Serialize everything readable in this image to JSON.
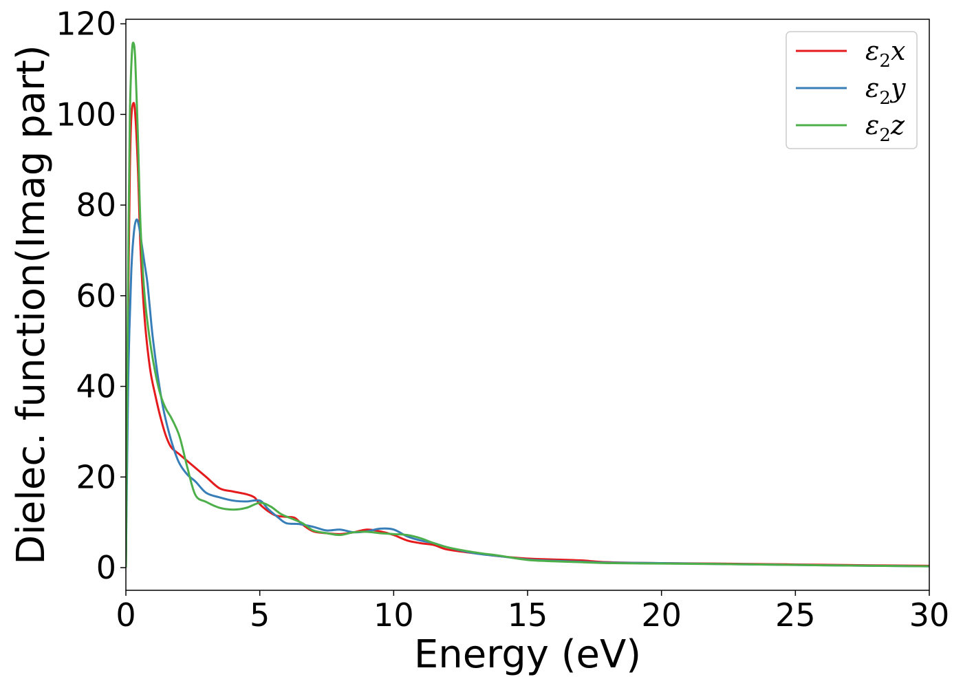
{
  "chart_data": {
    "type": "line",
    "title": "",
    "xlabel": "Energy (eV)",
    "ylabel": "Dielec. function(Imag part)",
    "xlim": [
      0,
      30
    ],
    "ylim": [
      -5,
      121
    ],
    "xticks": [
      0,
      5,
      10,
      15,
      20,
      25,
      30
    ],
    "yticks": [
      0,
      20,
      40,
      60,
      80,
      100,
      120
    ],
    "grid": false,
    "legend_position": "top-right",
    "series": [
      {
        "name": "ε2x",
        "legend": {
          "sym": "ε",
          "sub": "2",
          "var": "x"
        },
        "color": "#e41a1c",
        "points": [
          [
            0,
            0
          ],
          [
            0.05,
            35
          ],
          [
            0.1,
            65
          ],
          [
            0.15,
            88
          ],
          [
            0.2,
            99
          ],
          [
            0.28,
            102.5
          ],
          [
            0.35,
            100
          ],
          [
            0.45,
            88
          ],
          [
            0.55,
            70
          ],
          [
            0.7,
            55
          ],
          [
            0.9,
            44
          ],
          [
            1.1,
            38
          ],
          [
            1.3,
            33
          ],
          [
            1.5,
            29
          ],
          [
            1.7,
            26.5
          ],
          [
            2.0,
            25
          ],
          [
            2.5,
            22.5
          ],
          [
            3.0,
            20
          ],
          [
            3.5,
            17.5
          ],
          [
            4.0,
            16.8
          ],
          [
            4.5,
            16.2
          ],
          [
            4.8,
            15.5
          ],
          [
            5.0,
            14
          ],
          [
            5.3,
            12.5
          ],
          [
            5.6,
            11.5
          ],
          [
            6.0,
            11.2
          ],
          [
            6.3,
            11.0
          ],
          [
            6.6,
            9.5
          ],
          [
            7.0,
            8
          ],
          [
            7.5,
            7.6
          ],
          [
            8.0,
            7.4
          ],
          [
            8.5,
            7.8
          ],
          [
            9.0,
            8.4
          ],
          [
            9.5,
            8.0
          ],
          [
            10.0,
            7.2
          ],
          [
            10.5,
            6.0
          ],
          [
            11.0,
            5.4
          ],
          [
            11.5,
            5.0
          ],
          [
            12.0,
            4.0
          ],
          [
            13.0,
            3.2
          ],
          [
            14.0,
            2.5
          ],
          [
            15.0,
            2.0
          ],
          [
            16.0,
            1.8
          ],
          [
            17.0,
            1.6
          ],
          [
            18.0,
            1.2
          ],
          [
            20.0,
            1.0
          ],
          [
            22.0,
            0.9
          ],
          [
            25.0,
            0.7
          ],
          [
            28.0,
            0.5
          ],
          [
            30.0,
            0.4
          ]
        ]
      },
      {
        "name": "ε2y",
        "legend": {
          "sym": "ε",
          "sub": "2",
          "var": "y"
        },
        "color": "#377eb8",
        "points": [
          [
            0,
            0
          ],
          [
            0.05,
            25
          ],
          [
            0.1,
            45
          ],
          [
            0.2,
            65
          ],
          [
            0.3,
            74
          ],
          [
            0.4,
            76.8
          ],
          [
            0.5,
            75
          ],
          [
            0.6,
            71
          ],
          [
            0.7,
            67
          ],
          [
            0.8,
            63
          ],
          [
            0.9,
            57
          ],
          [
            1.0,
            51
          ],
          [
            1.2,
            42
          ],
          [
            1.4,
            35
          ],
          [
            1.6,
            30
          ],
          [
            1.8,
            26
          ],
          [
            2.0,
            23
          ],
          [
            2.3,
            20.5
          ],
          [
            2.6,
            19
          ],
          [
            3.0,
            16.5
          ],
          [
            3.5,
            15.5
          ],
          [
            4.0,
            14.8
          ],
          [
            4.5,
            14.6
          ],
          [
            5.0,
            14.8
          ],
          [
            5.3,
            13
          ],
          [
            5.7,
            11
          ],
          [
            6.0,
            9.8
          ],
          [
            6.5,
            9.6
          ],
          [
            7.0,
            9.0
          ],
          [
            7.5,
            8.2
          ],
          [
            8.0,
            8.4
          ],
          [
            8.5,
            7.8
          ],
          [
            9.0,
            8.0
          ],
          [
            9.5,
            8.6
          ],
          [
            10.0,
            8.4
          ],
          [
            10.5,
            6.9
          ],
          [
            11.0,
            6.0
          ],
          [
            11.5,
            5.4
          ],
          [
            12.0,
            4.5
          ],
          [
            13.0,
            3.2
          ],
          [
            14.0,
            2.5
          ],
          [
            15.0,
            1.8
          ],
          [
            16.0,
            1.5
          ],
          [
            17.0,
            1.3
          ],
          [
            18.0,
            1.1
          ],
          [
            20.0,
            1.0
          ],
          [
            22.0,
            0.8
          ],
          [
            25.0,
            0.6
          ],
          [
            28.0,
            0.4
          ],
          [
            30.0,
            0.3
          ]
        ]
      },
      {
        "name": "ε2z",
        "legend": {
          "sym": "ε",
          "sub": "2",
          "var": "z"
        },
        "color": "#4daf4a",
        "points": [
          [
            0,
            0
          ],
          [
            0.05,
            40
          ],
          [
            0.1,
            75
          ],
          [
            0.15,
            100
          ],
          [
            0.22,
            113
          ],
          [
            0.28,
            115.8
          ],
          [
            0.35,
            112
          ],
          [
            0.45,
            95
          ],
          [
            0.55,
            75
          ],
          [
            0.7,
            60
          ],
          [
            0.9,
            50
          ],
          [
            1.1,
            43
          ],
          [
            1.3,
            38
          ],
          [
            1.5,
            35
          ],
          [
            1.7,
            33
          ],
          [
            2.0,
            29
          ],
          [
            2.3,
            22
          ],
          [
            2.6,
            16
          ],
          [
            3.0,
            14.5
          ],
          [
            3.5,
            13.2
          ],
          [
            4.0,
            12.8
          ],
          [
            4.5,
            13.2
          ],
          [
            5.0,
            14.3
          ],
          [
            5.4,
            13.5
          ],
          [
            5.8,
            11.8
          ],
          [
            6.2,
            10.8
          ],
          [
            6.6,
            9.8
          ],
          [
            7.0,
            8.2
          ],
          [
            7.5,
            7.6
          ],
          [
            8.0,
            7.2
          ],
          [
            8.5,
            7.8
          ],
          [
            9.0,
            7.9
          ],
          [
            9.5,
            7.6
          ],
          [
            10.0,
            7.4
          ],
          [
            10.5,
            7.2
          ],
          [
            11.0,
            6.5
          ],
          [
            11.5,
            5.4
          ],
          [
            12.0,
            4.5
          ],
          [
            13.0,
            3.4
          ],
          [
            14.0,
            2.6
          ],
          [
            15.0,
            1.7
          ],
          [
            16.0,
            1.4
          ],
          [
            17.0,
            1.2
          ],
          [
            18.0,
            1.0
          ],
          [
            20.0,
            0.9
          ],
          [
            22.0,
            0.8
          ],
          [
            25.0,
            0.6
          ],
          [
            28.0,
            0.4
          ],
          [
            30.0,
            0.3
          ]
        ]
      }
    ]
  }
}
